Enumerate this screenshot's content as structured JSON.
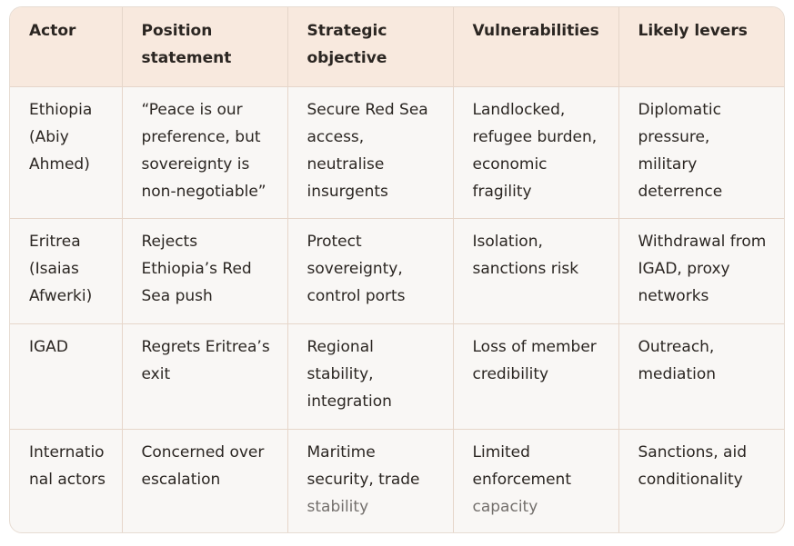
{
  "table": {
    "headers": [
      "Actor",
      "Position statement",
      "Strategic objective",
      "Vulnerabilities",
      "Likely levers"
    ],
    "rows": [
      [
        "Ethiopia (Abiy Ahmed)",
        "“Peace is our preference, but sovereignty is non-negotiable”",
        "Secure Red Sea access, neutralise insurgents",
        "Landlocked, refugee burden, economic fragility",
        "Diplomatic pressure, military deterrence"
      ],
      [
        "Eritrea (Isaias Afwerki)",
        "Rejects Ethiopia’s Red Sea push",
        "Protect sovereignty, control ports",
        "Isolation, sanctions risk",
        "Withdrawal from IGAD, proxy networks"
      ],
      [
        "IGAD",
        "Regrets Eritrea’s exit",
        "Regional stability, integration",
        "Loss of member credibility",
        "Outreach, mediation"
      ],
      [
        "International actors",
        "Concerned over escalation",
        "Maritime security, trade stability",
        "Limited enforcement capacity",
        "Sanctions, aid conditionality"
      ]
    ]
  }
}
